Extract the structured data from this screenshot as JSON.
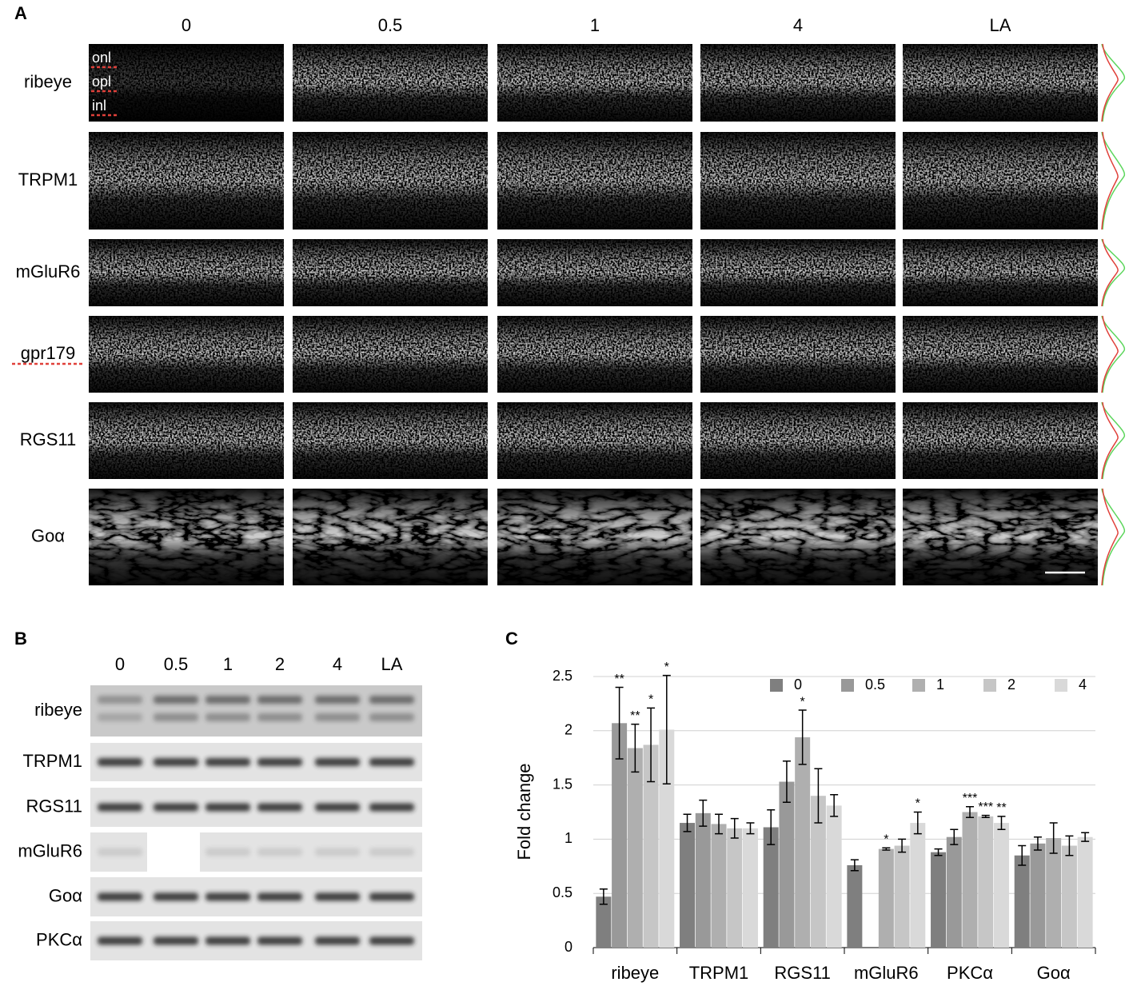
{
  "panel_a": {
    "label": "A",
    "columns": [
      "0",
      "0.5",
      "1",
      "4",
      "LA"
    ],
    "rows": [
      "ribeye",
      "TRPM1",
      "mGluR6",
      "gpr179",
      "RGS11",
      "Goα"
    ],
    "layers": [
      "onl",
      "opl",
      "inl"
    ]
  },
  "panel_b": {
    "label": "B",
    "columns": [
      "0",
      "0.5",
      "1",
      "2",
      "4",
      "LA"
    ],
    "rows": [
      "ribeye",
      "TRPM1",
      "RGS11",
      "mGluR6",
      "Goα",
      "PKCα"
    ]
  },
  "chart_data": {
    "type": "bar",
    "label": "C",
    "y_label": "Fold change",
    "categories": [
      "ribeye",
      "TRPM1",
      "RGS11",
      "mGluR6",
      "PKCα",
      "Goα"
    ],
    "series": [
      {
        "name": "0",
        "color": "#7f7f7f",
        "values": [
          0.47,
          1.15,
          1.11,
          0.76,
          0.88,
          0.85
        ],
        "errors": [
          0.07,
          0.08,
          0.16,
          0.05,
          0.03,
          0.09
        ],
        "significance": [
          null,
          null,
          null,
          null,
          null,
          null
        ]
      },
      {
        "name": "0.5",
        "color": "#999999",
        "values": [
          2.07,
          1.24,
          1.53,
          null,
          1.02,
          0.96
        ],
        "errors": [
          0.33,
          0.12,
          0.19,
          null,
          0.07,
          0.06
        ],
        "significance": [
          "**",
          null,
          null,
          null,
          null,
          null
        ]
      },
      {
        "name": "1",
        "color": "#afafaf",
        "values": [
          1.84,
          1.14,
          1.94,
          0.91,
          1.25,
          1.01
        ],
        "errors": [
          0.22,
          0.09,
          0.25,
          0.01,
          0.05,
          0.14
        ],
        "significance": [
          "**",
          null,
          "*",
          "*",
          "***",
          null
        ]
      },
      {
        "name": "2",
        "color": "#c6c6c6",
        "values": [
          1.87,
          1.1,
          1.4,
          0.94,
          1.21,
          0.94
        ],
        "errors": [
          0.34,
          0.09,
          0.25,
          0.06,
          0.01,
          0.09
        ],
        "significance": [
          "*",
          null,
          null,
          null,
          "***",
          null
        ]
      },
      {
        "name": "4",
        "color": "#d9d9d9",
        "values": [
          2.01,
          1.1,
          1.31,
          1.15,
          1.15,
          1.02
        ],
        "errors": [
          0.5,
          0.05,
          0.1,
          0.1,
          0.06,
          0.04
        ],
        "significance": [
          "*",
          null,
          null,
          "*",
          "**",
          null
        ]
      }
    ],
    "ylim": [
      0,
      2.5
    ],
    "yticks": [
      0,
      0.5,
      1,
      1.5,
      2,
      2.5
    ],
    "grid": true,
    "legend": "top-right"
  }
}
